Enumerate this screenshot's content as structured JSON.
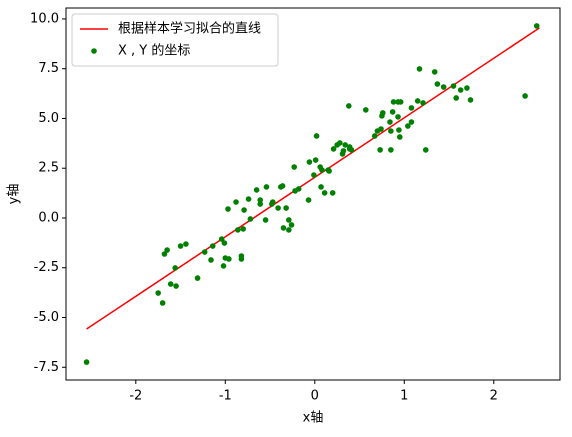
{
  "chart_data": {
    "type": "scatter",
    "xlabel": "x轴",
    "ylabel": "y轴",
    "xlim": [
      -2.78,
      2.74
    ],
    "ylim": [
      -8.14,
      10.55
    ],
    "xticks": [
      -2,
      -1,
      0,
      1,
      2
    ],
    "yticks": [
      {
        "value": -7.5,
        "label": "-7.5"
      },
      {
        "value": -5,
        "label": "-5.0"
      },
      {
        "value": -2.5,
        "label": "-2.5"
      },
      {
        "value": 0,
        "label": "0.0"
      },
      {
        "value": 2.5,
        "label": "2.5"
      },
      {
        "value": 5,
        "label": "5.0"
      },
      {
        "value": 7.5,
        "label": "7.5"
      },
      {
        "value": 10,
        "label": "10.0"
      }
    ],
    "legend": "upper left",
    "series": [
      {
        "name": "根据样本学习拟合的直线",
        "type": "line",
        "color": "#ff0000",
        "x": [
          -2.55,
          2.51
        ],
        "values": [
          -5.58,
          9.55
        ]
      },
      {
        "name": "X , Y 的坐标",
        "type": "scatter",
        "color": "#008000",
        "x": [
          -2.55,
          -1.75,
          -1.7,
          -1.68,
          -1.65,
          -1.61,
          -1.56,
          -1.55,
          -1.5,
          -1.44,
          -1.31,
          -1.23,
          -1.16,
          -1.14,
          -1.04,
          -1.02,
          -1.01,
          -1.0,
          -0.97,
          -0.96,
          -0.88,
          -0.86,
          -0.82,
          -0.82,
          -0.8,
          -0.79,
          -0.74,
          -0.72,
          -0.65,
          -0.61,
          -0.61,
          -0.55,
          -0.54,
          -0.48,
          -0.47,
          -0.41,
          -0.38,
          -0.36,
          -0.35,
          -0.32,
          -0.29,
          -0.29,
          -0.26,
          -0.23,
          -0.22,
          -0.18,
          -0.07,
          -0.06,
          -0.01,
          0.01,
          0.02,
          0.06,
          0.07,
          0.08,
          0.11,
          0.15,
          0.16,
          0.2,
          0.21,
          0.25,
          0.28,
          0.31,
          0.32,
          0.34,
          0.38,
          0.39,
          0.39,
          0.41,
          0.57,
          0.67,
          0.7,
          0.73,
          0.74,
          0.75,
          0.76,
          0.84,
          0.85,
          0.85,
          0.87,
          0.88,
          0.93,
          0.94,
          0.93,
          0.95,
          0.96,
          1.04,
          1.08,
          1.08,
          1.15,
          1.17,
          1.21,
          1.24,
          1.34,
          1.37,
          1.44,
          1.55,
          1.58,
          1.63,
          1.7,
          1.74,
          2.35,
          2.48
        ],
        "values": [
          -7.24,
          -3.77,
          -4.27,
          -1.81,
          -1.61,
          -3.32,
          -2.51,
          -3.42,
          -1.41,
          -1.31,
          -3.02,
          -1.71,
          -2.11,
          -1.41,
          -1.06,
          -2.41,
          -1.26,
          -2.01,
          0.45,
          -2.06,
          0.8,
          -0.6,
          -1.91,
          -2.06,
          -0.55,
          0.4,
          0.95,
          -0.05,
          1.41,
          0.9,
          0.7,
          -0.1,
          1.56,
          0.7,
          0.8,
          0.5,
          1.56,
          1.61,
          -0.5,
          0.5,
          -0.6,
          -0.1,
          -0.35,
          2.56,
          1.36,
          1.46,
          0.9,
          2.81,
          2.16,
          2.91,
          4.12,
          2.56,
          1.56,
          2.41,
          1.26,
          2.41,
          2.36,
          1.26,
          3.47,
          3.67,
          3.77,
          3.22,
          3.37,
          3.67,
          5.63,
          3.47,
          3.57,
          3.42,
          5.43,
          4.12,
          4.37,
          3.42,
          4.47,
          5.13,
          5.28,
          4.82,
          3.42,
          4.37,
          5.33,
          5.83,
          5.83,
          4.42,
          5.08,
          4.07,
          5.83,
          4.62,
          4.82,
          5.53,
          5.88,
          7.49,
          5.78,
          3.42,
          7.34,
          6.73,
          6.58,
          6.63,
          6.03,
          6.43,
          6.53,
          5.93,
          6.13,
          9.65
        ]
      }
    ]
  }
}
